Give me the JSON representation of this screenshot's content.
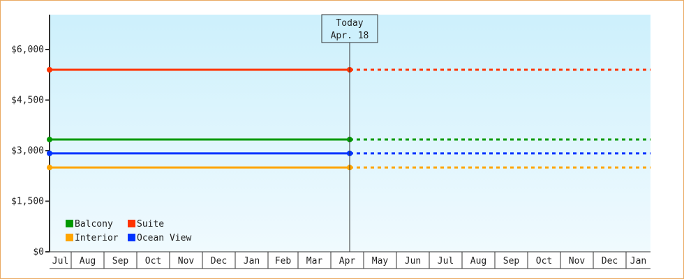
{
  "chart_data": {
    "type": "line",
    "title": "",
    "xlabel": "",
    "ylabel": "",
    "ylim": [
      0,
      7000
    ],
    "y_ticks": [
      0,
      1500,
      3000,
      4500,
      6000
    ],
    "y_tick_labels": [
      "$0",
      "$1,500",
      "$3,000",
      "$4,500",
      "$6,000"
    ],
    "x_tick_labels": [
      "Jul",
      "Aug",
      "Sep",
      "Oct",
      "Nov",
      "Dec",
      "Jan",
      "Feb",
      "Mar",
      "Apr",
      "May",
      "Jun",
      "Jul",
      "Aug",
      "Sep",
      "Oct",
      "Nov",
      "Dec",
      "Jan"
    ],
    "grid": false,
    "background": [
      "#cdf0fc",
      "#f0fafe"
    ],
    "today_marker": {
      "line1": "Today",
      "line2": "Apr. 18"
    },
    "legend_placement": "bottom-left",
    "series": [
      {
        "name": "Suite",
        "color": "#ff3300",
        "values": [
          5400,
          5400
        ],
        "projected": 5400
      },
      {
        "name": "Balcony",
        "color": "#009900",
        "values": [
          3330,
          3330
        ],
        "projected": 3330
      },
      {
        "name": "Ocean View",
        "color": "#0033ff",
        "values": [
          2920,
          2920
        ],
        "projected": 2920
      },
      {
        "name": "Interior",
        "color": "#ffa500",
        "values": [
          2500,
          2500
        ],
        "projected": 2500
      }
    ],
    "legend": [
      "Balcony",
      "Suite",
      "Interior",
      "Ocean View"
    ]
  }
}
